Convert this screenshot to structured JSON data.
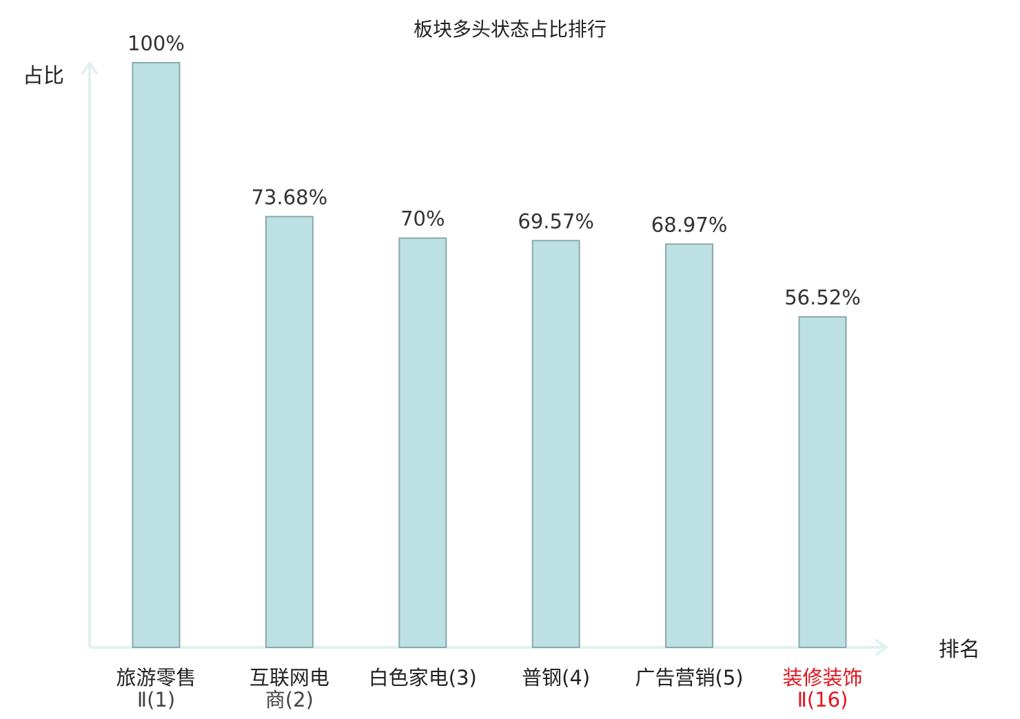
{
  "chart_data": {
    "type": "bar",
    "title": "板块多头状态占比排行",
    "ylabel": "占比",
    "xlabel": "排名",
    "ylim": [
      0,
      100
    ],
    "grid": false,
    "legend": "none",
    "categories": [
      {
        "name_lines": [
          "旅游零售"
        ],
        "rank_line": "Ⅱ(1)",
        "highlight": false
      },
      {
        "name_lines": [
          "互联网电"
        ],
        "rank_line": "商(2)",
        "highlight": false
      },
      {
        "name_lines": [
          "白色家电(3)"
        ],
        "rank_line": "",
        "highlight": false
      },
      {
        "name_lines": [
          "普钢(4)"
        ],
        "rank_line": "",
        "highlight": false
      },
      {
        "name_lines": [
          "广告营销(5)"
        ],
        "rank_line": "",
        "highlight": false
      },
      {
        "name_lines": [
          "装修装饰"
        ],
        "rank_line": "Ⅱ(16)",
        "highlight": true
      }
    ],
    "values": [
      100,
      73.68,
      70,
      69.57,
      68.97,
      56.52
    ],
    "value_labels": [
      "100%",
      "73.68%",
      "70%",
      "69.57%",
      "68.97%",
      "56.52%"
    ]
  },
  "colors": {
    "bar_fill": "#bce0e3",
    "bar_stroke": "#8aa8ab",
    "axis": "#dff2f0",
    "text": "#222222",
    "value_label": "#333333",
    "highlight": "#e0141e",
    "rank_text": "#444444"
  }
}
